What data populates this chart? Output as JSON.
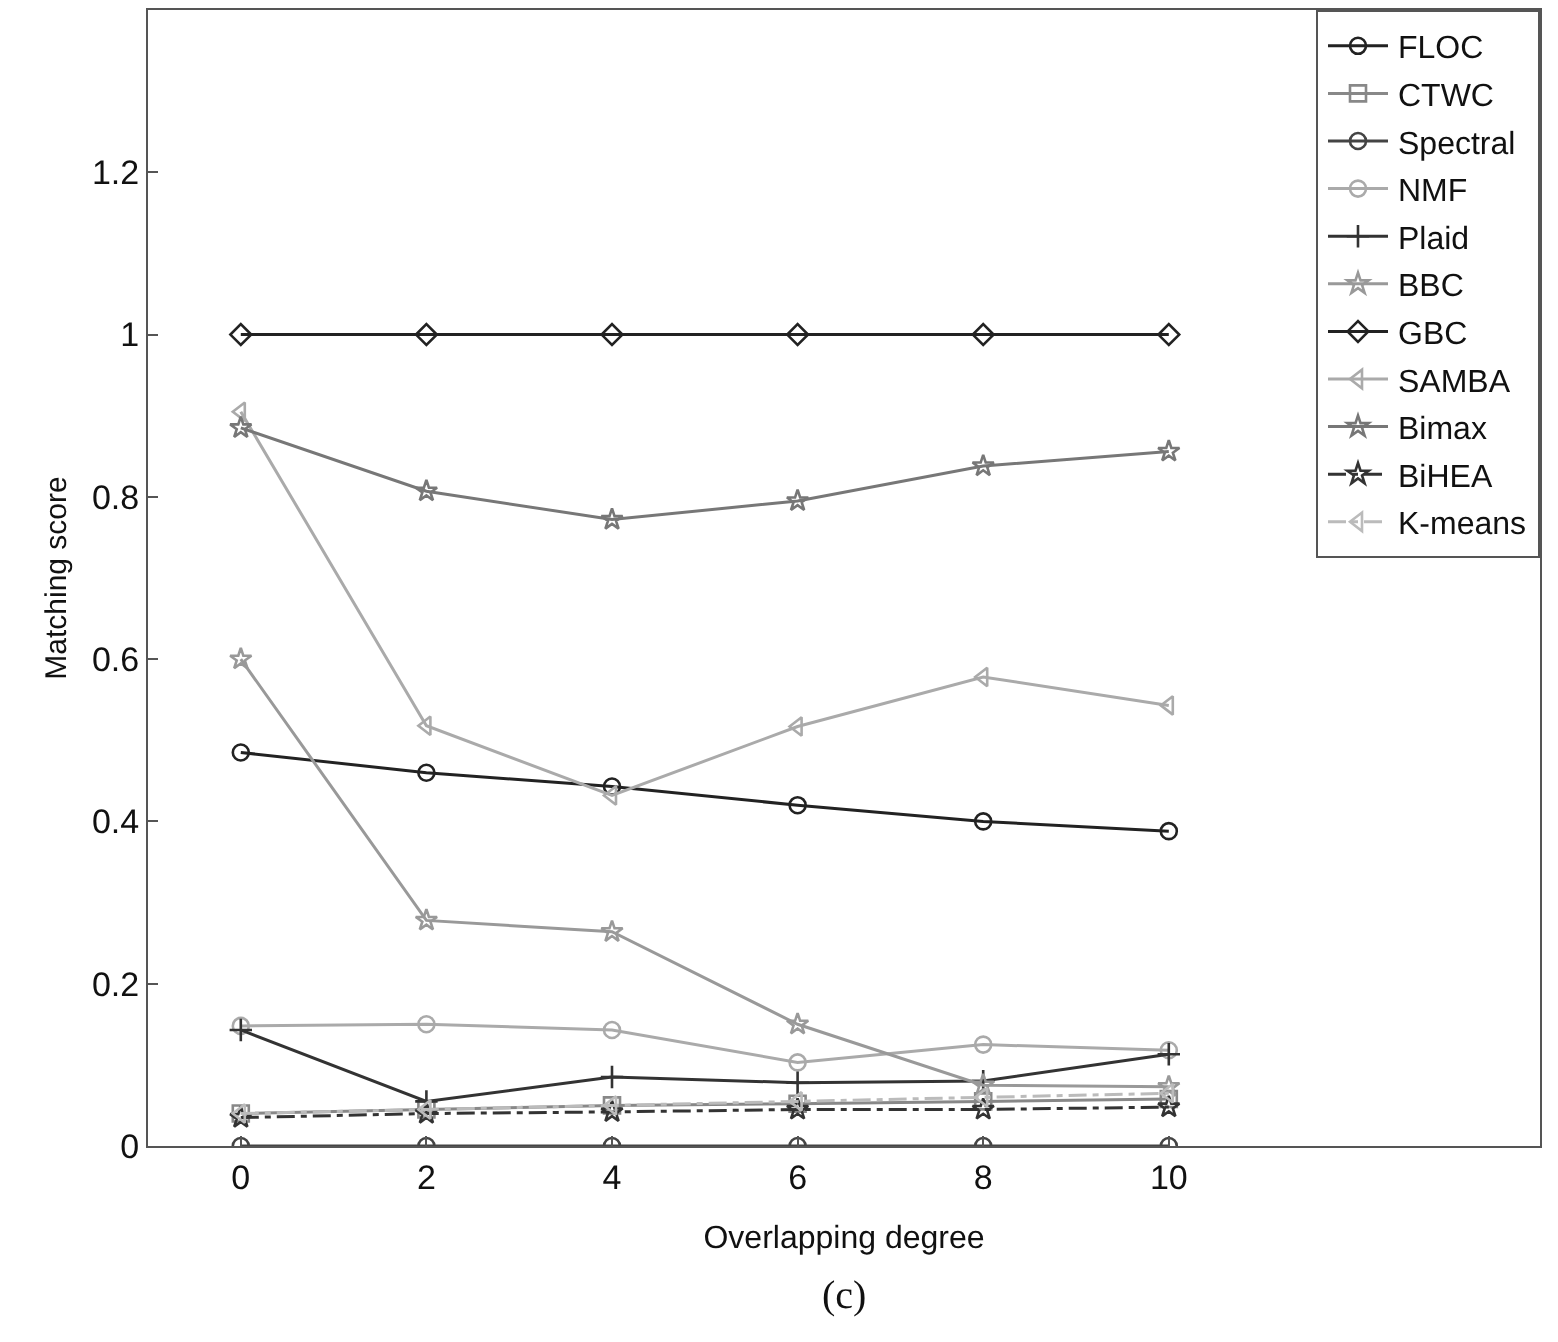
{
  "chart_data": {
    "type": "line",
    "xlabel": "Overlapping degree",
    "ylabel": "Matching score",
    "x": [
      0,
      2,
      4,
      6,
      8,
      10
    ],
    "xlim": [
      -1,
      14
    ],
    "xticks": [
      0,
      2,
      4,
      6,
      8,
      10
    ],
    "ylim": [
      0,
      1.4
    ],
    "yticks": [
      0,
      0.2,
      0.4,
      0.6,
      0.8,
      1,
      1.2
    ],
    "legend": "top right",
    "annotations": [
      "(c)"
    ],
    "series": [
      {
        "name": "FLOC",
        "color": "#222222",
        "marker": "circle",
        "line_style": "solid",
        "values": [
          0.485,
          0.46,
          0.443,
          0.42,
          0.4,
          0.388
        ]
      },
      {
        "name": "CTWC",
        "color": "#888888",
        "marker": "square",
        "line_style": "solid",
        "values": [
          0.04,
          0.045,
          0.05,
          0.052,
          0.055,
          0.058
        ]
      },
      {
        "name": "Spectral",
        "color": "#444444",
        "marker": "circle",
        "line_style": "solid",
        "values": [
          0,
          0,
          0,
          0,
          0,
          0
        ]
      },
      {
        "name": "NMF",
        "color": "#aaaaaa",
        "marker": "circle",
        "line_style": "solid",
        "values": [
          0.148,
          0.15,
          0.143,
          0.103,
          0.125,
          0.118
        ]
      },
      {
        "name": "Plaid",
        "color": "#333333",
        "marker": "cross",
        "line_style": "solid",
        "values": [
          0.143,
          0.055,
          0.085,
          0.078,
          0.08,
          0.113
        ]
      },
      {
        "name": "BBC",
        "color": "#999999",
        "marker": "star",
        "line_style": "solid",
        "values": [
          0.6,
          0.278,
          0.264,
          0.15,
          0.075,
          0.073
        ]
      },
      {
        "name": "GBC",
        "color": "#222222",
        "marker": "diamond",
        "line_style": "solid",
        "values": [
          1,
          1,
          1,
          1,
          1,
          1
        ]
      },
      {
        "name": "SAMBA",
        "color": "#aaaaaa",
        "marker": "triangle",
        "line_style": "solid",
        "values": [
          0.905,
          0.518,
          0.432,
          0.517,
          0.578,
          0.543
        ]
      },
      {
        "name": "Bimax",
        "color": "#777777",
        "marker": "star",
        "line_style": "solid",
        "values": [
          0.885,
          0.807,
          0.772,
          0.795,
          0.838,
          0.856
        ]
      },
      {
        "name": "BiHEA",
        "color": "#333333",
        "marker": "star",
        "line_style": "dashdot",
        "values": [
          0.035,
          0.04,
          0.042,
          0.045,
          0.045,
          0.048
        ]
      },
      {
        "name": "K-means",
        "color": "#bbbbbb",
        "marker": "triangle",
        "line_style": "dashdot",
        "values": [
          0.04,
          0.045,
          0.05,
          0.055,
          0.06,
          0.065
        ]
      }
    ]
  }
}
